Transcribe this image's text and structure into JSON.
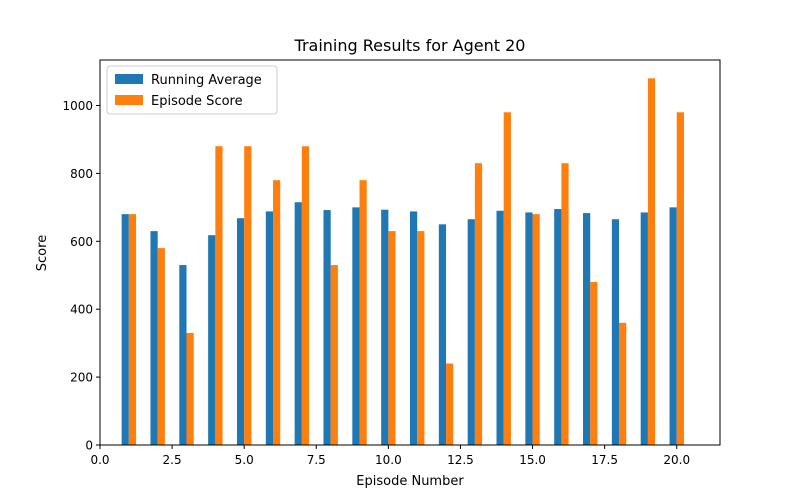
{
  "chart_data": {
    "type": "bar",
    "title": "Training Results for Agent 20",
    "xlabel": "Episode Number",
    "ylabel": "Score",
    "x": [
      1,
      2,
      3,
      4,
      5,
      6,
      7,
      8,
      9,
      10,
      11,
      12,
      13,
      14,
      15,
      16,
      17,
      18,
      19,
      20
    ],
    "series": [
      {
        "name": "Running Average",
        "color": "#1f77b4",
        "values": [
          680,
          630,
          530,
          618,
          668,
          688,
          715,
          692,
          700,
          693,
          688,
          650,
          665,
          690,
          685,
          695,
          683,
          665,
          685,
          700
        ]
      },
      {
        "name": "Episode Score",
        "color": "#ff7f0e",
        "values": [
          680,
          580,
          330,
          880,
          880,
          780,
          880,
          530,
          780,
          630,
          630,
          240,
          830,
          980,
          680,
          830,
          480,
          360,
          1080,
          980
        ]
      }
    ],
    "xlim": [
      0,
      21.5
    ],
    "ylim": [
      0,
      1134
    ],
    "xticks": [
      "0.0",
      "2.5",
      "5.0",
      "7.5",
      "10.0",
      "12.5",
      "15.0",
      "17.5",
      "20.0"
    ],
    "yticks": [
      "0",
      "200",
      "400",
      "600",
      "800",
      "1000"
    ],
    "legend_position": "top-left",
    "grid": false
  }
}
